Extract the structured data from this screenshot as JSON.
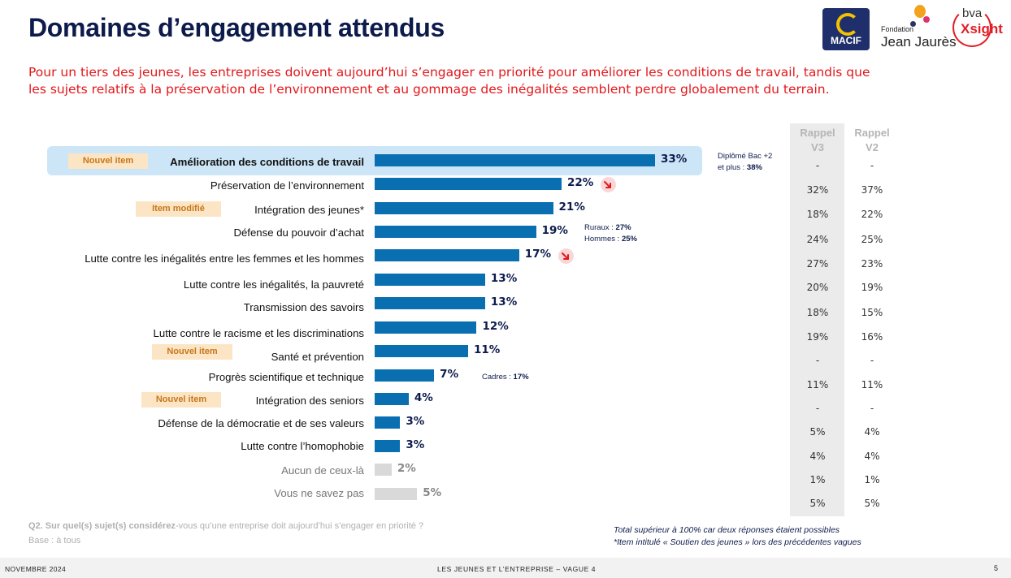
{
  "header": {
    "title": "Domaines d’engagement attendus",
    "subtitle": "Pour un tiers des jeunes, les entreprises doivent aujourd’hui s’engager en priorité pour améliorer les conditions de travail, tandis que les sujets relatifs à la préservation de l’environnement et au gommage des inégalités semblent perdre globalement du terrain."
  },
  "logos": {
    "macif": "MACIF",
    "fondation_small": "Fondation",
    "fondation_big": "Jean Jaurès",
    "bva_top": "bva",
    "bva_bottom": "Xsight"
  },
  "colors": {
    "bar": "#0a6fb0",
    "bar_grey": "#d9d9d9",
    "highlight": "#cce6f7",
    "accent_red": "#e3171b",
    "navy": "#0d1b4c",
    "badge_bg": "#fbe5c4",
    "badge_text": "#c7771a"
  },
  "chart_data": {
    "type": "bar",
    "orientation": "horizontal",
    "categories": [
      "Amélioration des conditions de travail",
      "Préservation de l’environnement",
      "Intégration des jeunes*",
      "Défense du pouvoir d’achat",
      "Lutte contre les inégalités entre les femmes et les hommes",
      "Lutte contre les inégalités, la pauvreté",
      "Transmission des savoirs",
      "Lutte contre le racisme et les discriminations",
      "Santé et prévention",
      "Progrès scientifique et technique",
      "Intégration des seniors",
      "Défense de la démocratie et de ses valeurs",
      "Lutte contre l’homophobie",
      "Aucun de ceux-là",
      "Vous ne savez pas"
    ],
    "values": [
      33,
      22,
      21,
      19,
      17,
      13,
      13,
      12,
      11,
      7,
      4,
      3,
      3,
      2,
      5
    ],
    "value_labels": [
      "33%",
      "22%",
      "21%",
      "19%",
      "17%",
      "13%",
      "13%",
      "12%",
      "11%",
      "7%",
      "4%",
      "3%",
      "3%",
      "2%",
      "5%"
    ],
    "grey_rows": [
      13,
      14
    ],
    "highlighted_row": 0,
    "badges": [
      {
        "row": 0,
        "text": "Nouvel item"
      },
      {
        "row": 2,
        "text": "Item modifié"
      },
      {
        "row": 8,
        "text": "Nouvel item"
      },
      {
        "row": 10,
        "text": "Nouvel item"
      }
    ],
    "trend_down_rows": [
      1,
      4
    ],
    "annotations": [
      {
        "row": 0,
        "lines": [
          [
            "Diplômé Bac +2",
            ""
          ],
          [
            "et plus : ",
            "38%"
          ]
        ]
      },
      {
        "row": 3,
        "lines": [
          [
            "Ruraux : ",
            "27%"
          ],
          [
            "Hommes : ",
            "25%"
          ]
        ]
      },
      {
        "row": 9,
        "lines": [
          [
            "Cadres : ",
            "17%"
          ]
        ]
      }
    ],
    "rappel": {
      "v3_header": [
        "Rappel",
        "V3"
      ],
      "v2_header": [
        "Rappel",
        "V2"
      ],
      "v3": [
        "-",
        "32%",
        "18%",
        "24%",
        "27%",
        "20%",
        "18%",
        "19%",
        "-",
        "11%",
        "-",
        "5%",
        "4%",
        "1%",
        "5%"
      ],
      "v2": [
        "-",
        "37%",
        "22%",
        "25%",
        "23%",
        "19%",
        "15%",
        "16%",
        "-",
        "11%",
        "-",
        "4%",
        "4%",
        "1%",
        "5%"
      ]
    },
    "xlim": [
      0,
      33
    ]
  },
  "footer": {
    "question_bold": "Q2. Sur quel(s) sujet(s) considérez",
    "question_rest": "-vous qu’une entreprise doit aujourd’hui s’engager en priorité ?",
    "base": "Base : à tous",
    "note1": "Total supérieur à 100% car deux réponses étaient possibles",
    "note2": "*Item intitulé « Soutien des jeunes » lors des précédentes vagues",
    "date": "NOVEMBRE 2024",
    "study": "LES JEUNES ET L’ENTREPRISE – VAGUE 4",
    "page": "5"
  }
}
